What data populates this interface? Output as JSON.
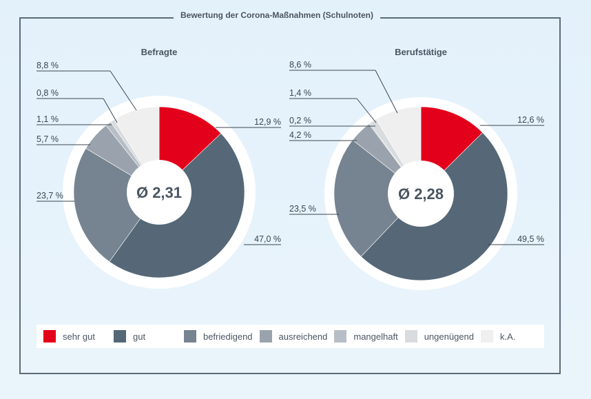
{
  "chart_data": {
    "title": "Bewertung der Corona-Maßnahmen (Schulnoten)",
    "type": "pie",
    "categories": [
      "sehr gut",
      "gut",
      "befriedigend",
      "ausreichend",
      "mangelhaft",
      "ungenügend",
      "k.A."
    ],
    "colors": [
      "#e2001a",
      "#566877",
      "#768390",
      "#9aa3ad",
      "#b8bec5",
      "#d9dcdf",
      "#efefef"
    ],
    "charts": [
      {
        "subtitle": "Befragte",
        "center_label": "Ø 2,31",
        "values": [
          12.9,
          47.0,
          23.7,
          5.7,
          1.1,
          0.8,
          8.8
        ],
        "value_labels": [
          "12,9 %",
          "47,0 %",
          "23,7 %",
          "5,7 %",
          "1,1 %",
          "0,8 %",
          "8,8 %"
        ]
      },
      {
        "subtitle": "Berufstätige",
        "center_label": "Ø 2,28",
        "values": [
          12.6,
          49.5,
          23.5,
          4.2,
          0.2,
          1.4,
          8.6
        ],
        "value_labels": [
          "12,6 %",
          "49,5 %",
          "23,5 %",
          "4,2 %",
          "0,2 %",
          "1,4 %",
          "8,6 %"
        ]
      }
    ]
  }
}
